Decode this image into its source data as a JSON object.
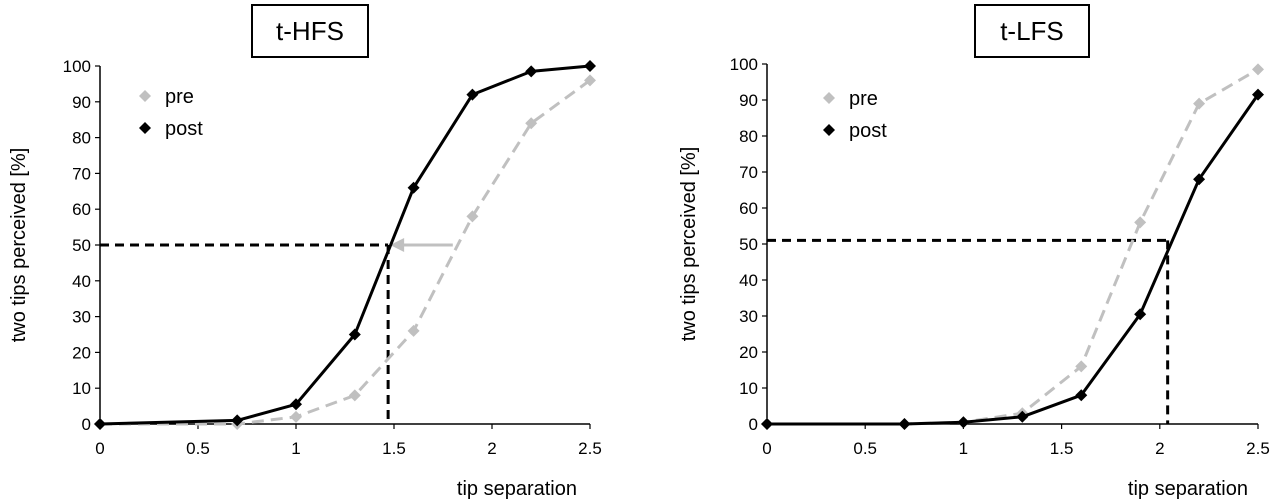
{
  "chart_data": [
    {
      "type": "line",
      "title": "t-HFS",
      "xlabel": "tip separation",
      "ylabel": "two tips perceived [%]",
      "xlim": [
        0,
        2.5
      ],
      "ylim": [
        0,
        100
      ],
      "xticks": [
        "0",
        "0.5",
        "1",
        "1.5",
        "2",
        "2.5"
      ],
      "yticks": [
        "0",
        "10",
        "20",
        "30",
        "40",
        "50",
        "60",
        "70",
        "80",
        "90",
        "100"
      ],
      "grid": false,
      "legend": "top-left",
      "series": [
        {
          "name": "pre",
          "color": "#c0c0c0",
          "dashed": true,
          "x": [
            0,
            0.7,
            1.0,
            1.3,
            1.6,
            1.9,
            2.2,
            2.5
          ],
          "y": [
            0,
            0,
            2,
            8,
            26,
            58,
            84,
            96
          ]
        },
        {
          "name": "post",
          "color": "#000000",
          "dashed": false,
          "x": [
            0,
            0.7,
            1.0,
            1.3,
            1.6,
            1.9,
            2.2,
            2.5
          ],
          "y": [
            0,
            1,
            5.5,
            25,
            66,
            92,
            98.5,
            100
          ]
        }
      ],
      "reference_lines": {
        "threshold_y": 50,
        "threshold_x": 1.47,
        "pre_threshold_x": 1.8,
        "arrow": true
      }
    },
    {
      "type": "line",
      "title": "t-LFS",
      "xlabel": "tip separation",
      "ylabel": "two tips perceived [%]",
      "xlim": [
        0,
        2.5
      ],
      "ylim": [
        0,
        100
      ],
      "xticks": [
        "0",
        "0.5",
        "1",
        "1.5",
        "2",
        "2.5"
      ],
      "yticks": [
        "0",
        "10",
        "20",
        "30",
        "40",
        "50",
        "60",
        "70",
        "80",
        "90",
        "100"
      ],
      "grid": false,
      "legend": "top-left",
      "series": [
        {
          "name": "pre",
          "color": "#c0c0c0",
          "dashed": true,
          "x": [
            0,
            0.7,
            1.0,
            1.3,
            1.6,
            1.9,
            2.2,
            2.5
          ],
          "y": [
            0,
            0,
            0.5,
            3,
            16,
            56,
            89,
            98.5
          ]
        },
        {
          "name": "post",
          "color": "#000000",
          "dashed": false,
          "x": [
            0,
            0.7,
            1.0,
            1.3,
            1.6,
            1.9,
            2.2,
            2.5
          ],
          "y": [
            0,
            0,
            0.5,
            2,
            8,
            30.5,
            68,
            91.5
          ]
        }
      ],
      "reference_lines": {
        "threshold_y": 51,
        "threshold_x": 2.04,
        "arrow": false
      }
    }
  ]
}
